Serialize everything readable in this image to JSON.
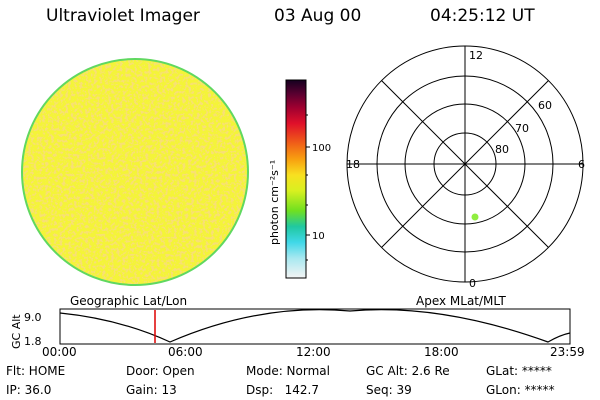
{
  "header": {
    "instrument": "Ultraviolet Imager",
    "date": "03 Aug 00",
    "time": "04:25:12 UT"
  },
  "colorbar": {
    "unit_label": "photon cm⁻²s⁻¹",
    "ticks": [
      "100",
      "10"
    ]
  },
  "polar_plot": {
    "mlt_labels": {
      "top": "12",
      "left": "18",
      "right": "6",
      "bottom": "0"
    },
    "mlat_labels": [
      "60",
      "70",
      "80"
    ],
    "point_color": "#90ee40"
  },
  "labels": {
    "geographic": "Geographic Lat/Lon",
    "apex": "Apex MLat/MLT"
  },
  "altitude_plot": {
    "axis_label": "GC Alt",
    "y_ticks": [
      "9.0",
      "1.8"
    ],
    "time_ticks": [
      "00:00",
      "06:00",
      "12:00",
      "18:00",
      "23:59"
    ],
    "marker_time": "04:25"
  },
  "status": {
    "flt": "Flt: HOME",
    "ip": "IP: 36.0",
    "door": "Door: Open",
    "gain": "Gain: 13",
    "mode": "Mode: Normal",
    "dsp": "Dsp:   142.7",
    "gc_alt": "GC Alt: 2.6 Re",
    "seq": "Seq: 39",
    "glat": "GLat: *****",
    "glon": "GLon: *****"
  },
  "colors": {
    "disk_base": "#f4f438",
    "disk_speckle": "#f0c030",
    "disk_rim": "#60d860",
    "marker_line": "#dd0000"
  }
}
